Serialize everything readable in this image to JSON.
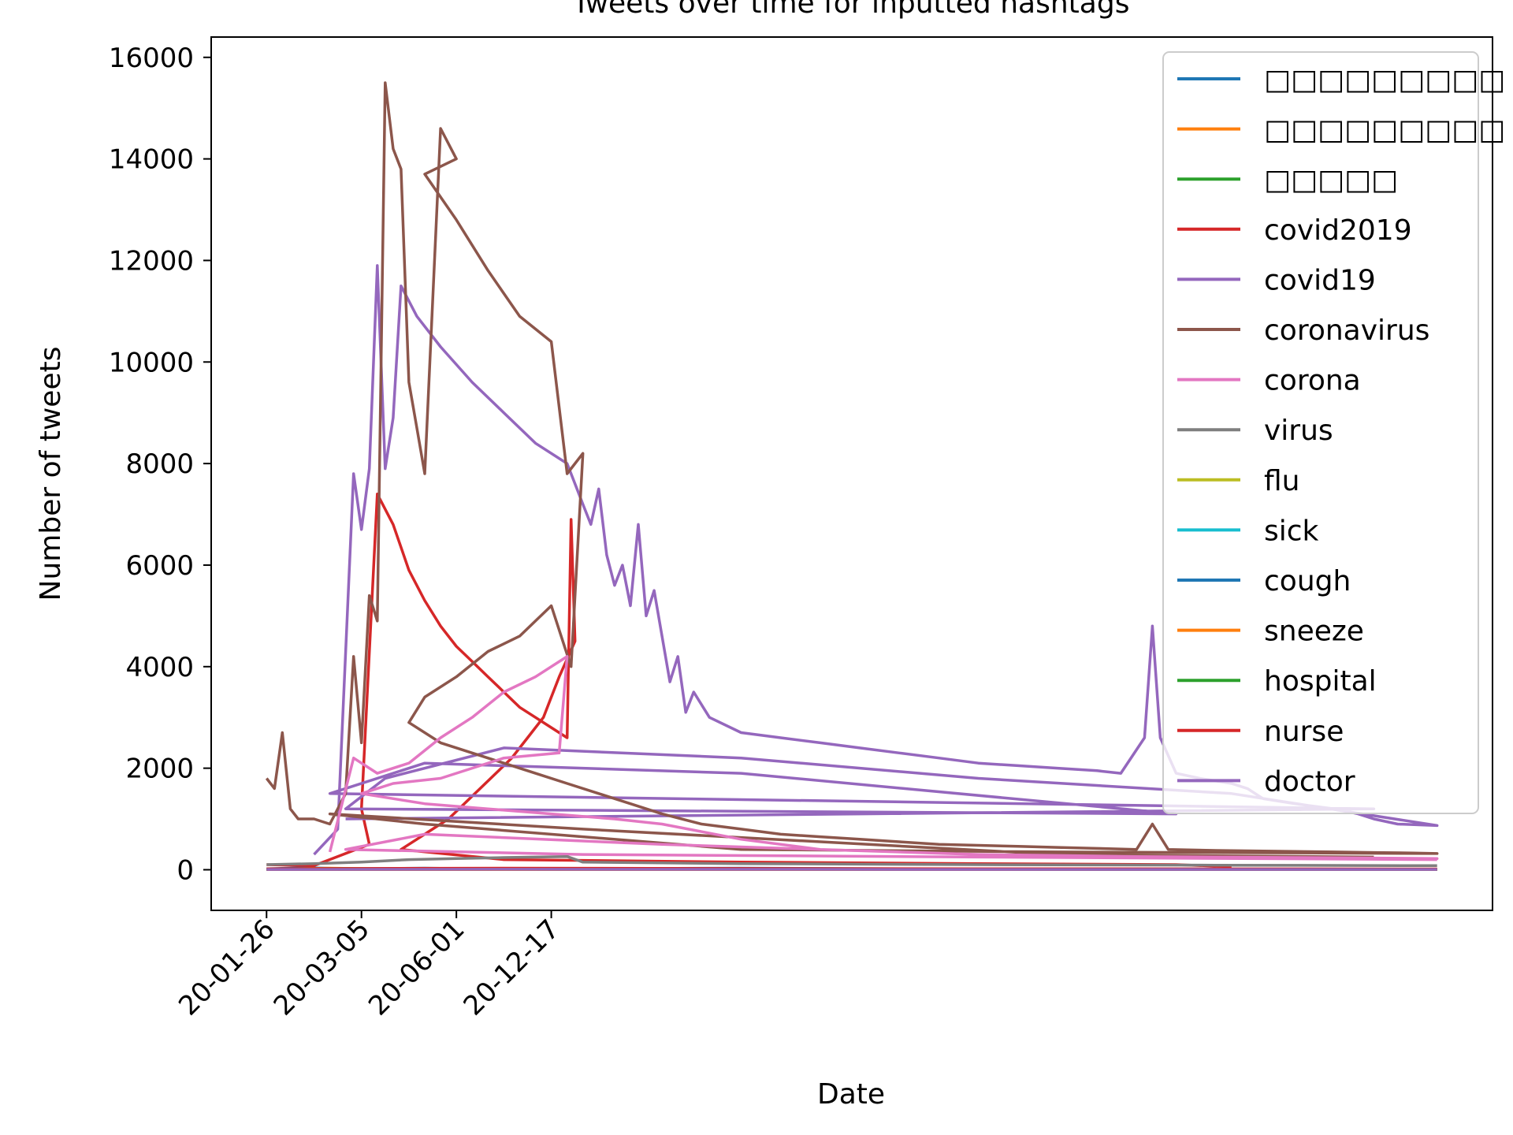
{
  "chart_data": {
    "type": "line",
    "title": "Tweets over time for inputted hashtags",
    "xlabel": "Date",
    "ylabel": "Number of tweets",
    "x_ticks": [
      "20-01-26",
      "20-03-05",
      "20-06-01",
      "20-12-17"
    ],
    "y_ticks": [
      0,
      2000,
      4000,
      6000,
      8000,
      10000,
      12000,
      14000,
      16000
    ],
    "ylim": [
      -800,
      16400
    ],
    "grid": false,
    "legend_position": "upper right",
    "series": [
      {
        "name": "□□□□□□□□□",
        "color": "#1f77b4",
        "points": [
          [
            0,
            20
          ],
          [
            5,
            40
          ],
          [
            10,
            20
          ],
          [
            20,
            30
          ],
          [
            30,
            10
          ],
          [
            40,
            20
          ],
          [
            60,
            30
          ],
          [
            80,
            20
          ],
          [
            120,
            15
          ]
        ]
      },
      {
        "name": "□□□□□□□□□",
        "color": "#ff7f0e",
        "points": [
          [
            0,
            10
          ],
          [
            8,
            30
          ],
          [
            15,
            15
          ],
          [
            25,
            20
          ],
          [
            40,
            10
          ],
          [
            70,
            20
          ],
          [
            120,
            10
          ]
        ]
      },
      {
        "name": "□□□□□",
        "color": "#2ca02c",
        "points": [
          [
            0,
            15
          ],
          [
            10,
            25
          ],
          [
            20,
            10
          ],
          [
            35,
            20
          ],
          [
            55,
            15
          ],
          [
            120,
            10
          ]
        ]
      },
      {
        "name": "covid2019",
        "color": "#d62728",
        "points": [
          [
            0,
            100
          ],
          [
            6,
            80
          ],
          [
            13,
            500
          ],
          [
            12,
            1200
          ],
          [
            14,
            7400
          ],
          [
            16,
            6800
          ],
          [
            18,
            5900
          ],
          [
            20,
            5300
          ],
          [
            22,
            4800
          ],
          [
            24,
            4400
          ],
          [
            26,
            4100
          ],
          [
            28,
            3800
          ],
          [
            30,
            3500
          ],
          [
            32,
            3200
          ],
          [
            34,
            3000
          ],
          [
            36,
            2800
          ],
          [
            38,
            2600
          ],
          [
            38.5,
            6900
          ],
          [
            39,
            4500
          ],
          [
            37,
            3800
          ],
          [
            35,
            3000
          ],
          [
            33,
            2600
          ],
          [
            31,
            2200
          ],
          [
            29,
            1900
          ],
          [
            27,
            1600
          ],
          [
            25,
            1300
          ],
          [
            23,
            1000
          ],
          [
            21,
            800
          ],
          [
            19,
            600
          ],
          [
            17,
            400
          ],
          [
            30,
            200
          ],
          [
            60,
            150
          ],
          [
            90,
            120
          ],
          [
            115,
            100
          ],
          [
            122,
            60
          ]
        ]
      },
      {
        "name": "covid19",
        "color": "#9467bd",
        "points": [
          [
            6,
            300
          ],
          [
            9,
            800
          ],
          [
            11,
            7800
          ],
          [
            12,
            6700
          ],
          [
            13,
            7900
          ],
          [
            14,
            11900
          ],
          [
            15,
            7900
          ],
          [
            16,
            8900
          ],
          [
            17,
            11500
          ],
          [
            19,
            10900
          ],
          [
            22,
            10300
          ],
          [
            26,
            9600
          ],
          [
            30,
            9000
          ],
          [
            34,
            8400
          ],
          [
            38,
            8000
          ],
          [
            39,
            7600
          ],
          [
            40,
            7200
          ],
          [
            41,
            6800
          ],
          [
            42,
            7500
          ],
          [
            43,
            6200
          ],
          [
            44,
            5600
          ],
          [
            45,
            6000
          ],
          [
            46,
            5200
          ],
          [
            47,
            6800
          ],
          [
            48,
            5000
          ],
          [
            49,
            5500
          ],
          [
            50,
            4600
          ],
          [
            51,
            3700
          ],
          [
            52,
            4200
          ],
          [
            53,
            3100
          ],
          [
            54,
            3500
          ],
          [
            56,
            3000
          ],
          [
            60,
            2700
          ],
          [
            65,
            2600
          ],
          [
            70,
            2500
          ],
          [
            75,
            2400
          ],
          [
            80,
            2300
          ],
          [
            85,
            2200
          ],
          [
            90,
            2100
          ],
          [
            95,
            2050
          ],
          [
            100,
            2000
          ],
          [
            105,
            1950
          ],
          [
            108,
            1900
          ],
          [
            111,
            2600
          ],
          [
            112,
            4800
          ],
          [
            113,
            2600
          ],
          [
            115,
            1900
          ],
          [
            118,
            1800
          ],
          [
            122,
            1700
          ],
          [
            124,
            1600
          ],
          [
            126,
            1400
          ],
          [
            130,
            1300
          ],
          [
            135,
            1200
          ],
          [
            138,
            1100
          ],
          [
            140,
            1000
          ],
          [
            143,
            900
          ],
          [
            148,
            870
          ],
          [
            122,
            1500
          ],
          [
            90,
            1800
          ],
          [
            60,
            2200
          ],
          [
            30,
            2400
          ],
          [
            15,
            1800
          ],
          [
            10,
            1200
          ],
          [
            115,
            1100
          ],
          [
            60,
            1900
          ],
          [
            20,
            2100
          ],
          [
            8,
            1500
          ],
          [
            140,
            1200
          ],
          [
            10,
            1000
          ]
        ]
      },
      {
        "name": "coronavirus",
        "color": "#8c564b",
        "points": [
          [
            0,
            1800
          ],
          [
            1,
            1600
          ],
          [
            2,
            2700
          ],
          [
            3,
            1200
          ],
          [
            4,
            1000
          ],
          [
            6,
            1000
          ],
          [
            8,
            900
          ],
          [
            10,
            1500
          ],
          [
            11,
            4200
          ],
          [
            12,
            2500
          ],
          [
            13,
            5400
          ],
          [
            14,
            4900
          ],
          [
            15,
            15500
          ],
          [
            16,
            14200
          ],
          [
            17,
            13800
          ],
          [
            18,
            9600
          ],
          [
            19,
            8700
          ],
          [
            20,
            7800
          ],
          [
            22,
            14600
          ],
          [
            24,
            14000
          ],
          [
            20,
            13700
          ],
          [
            24,
            12800
          ],
          [
            28,
            11800
          ],
          [
            32,
            10900
          ],
          [
            36,
            10400
          ],
          [
            38,
            7800
          ],
          [
            40,
            8200
          ],
          [
            38.5,
            4000
          ],
          [
            36,
            5200
          ],
          [
            32,
            4600
          ],
          [
            28,
            4300
          ],
          [
            24,
            3800
          ],
          [
            20,
            3400
          ],
          [
            18,
            2900
          ],
          [
            22,
            2500
          ],
          [
            26,
            2300
          ],
          [
            30,
            2100
          ],
          [
            34,
            1900
          ],
          [
            38,
            1700
          ],
          [
            42,
            1500
          ],
          [
            46,
            1300
          ],
          [
            50,
            1100
          ],
          [
            55,
            900
          ],
          [
            60,
            800
          ],
          [
            65,
            700
          ],
          [
            70,
            650
          ],
          [
            75,
            600
          ],
          [
            80,
            550
          ],
          [
            85,
            500
          ],
          [
            90,
            480
          ],
          [
            95,
            460
          ],
          [
            100,
            440
          ],
          [
            105,
            420
          ],
          [
            110,
            400
          ],
          [
            112,
            900
          ],
          [
            114,
            400
          ],
          [
            120,
            380
          ],
          [
            125,
            370
          ],
          [
            130,
            360
          ],
          [
            135,
            350
          ],
          [
            140,
            340
          ],
          [
            145,
            330
          ],
          [
            148,
            320
          ],
          [
            100,
            350
          ],
          [
            60,
            400
          ],
          [
            20,
            900
          ],
          [
            8,
            1100
          ],
          [
            40,
            800
          ],
          [
            100,
            300
          ],
          [
            140,
            250
          ]
        ]
      },
      {
        "name": "corona",
        "color": "#e377c2",
        "points": [
          [
            8,
            350
          ],
          [
            11,
            2200
          ],
          [
            14,
            1900
          ],
          [
            18,
            2100
          ],
          [
            22,
            2600
          ],
          [
            26,
            3000
          ],
          [
            30,
            3500
          ],
          [
            34,
            3800
          ],
          [
            38,
            4200
          ],
          [
            37,
            2300
          ],
          [
            30,
            2200
          ],
          [
            22,
            1800
          ],
          [
            16,
            1700
          ],
          [
            12,
            1500
          ],
          [
            20,
            1300
          ],
          [
            28,
            1200
          ],
          [
            36,
            1100
          ],
          [
            44,
            1000
          ],
          [
            50,
            900
          ],
          [
            60,
            600
          ],
          [
            70,
            400
          ],
          [
            80,
            350
          ],
          [
            90,
            300
          ],
          [
            100,
            280
          ],
          [
            110,
            260
          ],
          [
            120,
            250
          ],
          [
            130,
            240
          ],
          [
            140,
            230
          ],
          [
            148,
            220
          ],
          [
            100,
            250
          ],
          [
            50,
            500
          ],
          [
            20,
            700
          ],
          [
            10,
            400
          ],
          [
            40,
            300
          ],
          [
            90,
            250
          ],
          [
            148,
            200
          ]
        ]
      },
      {
        "name": "virus",
        "color": "#7f7f7f",
        "points": [
          [
            0,
            100
          ],
          [
            6,
            120
          ],
          [
            12,
            150
          ],
          [
            18,
            200
          ],
          [
            24,
            220
          ],
          [
            30,
            240
          ],
          [
            38,
            260
          ],
          [
            40,
            150
          ],
          [
            60,
            120
          ],
          [
            90,
            100
          ],
          [
            120,
            90
          ],
          [
            148,
            80
          ]
        ]
      },
      {
        "name": "flu",
        "color": "#bcbd22",
        "points": [
          [
            0,
            5
          ],
          [
            30,
            8
          ],
          [
            60,
            5
          ],
          [
            90,
            7
          ],
          [
            148,
            5
          ]
        ]
      },
      {
        "name": "sick",
        "color": "#17becf",
        "points": [
          [
            0,
            8
          ],
          [
            30,
            10
          ],
          [
            60,
            8
          ],
          [
            90,
            9
          ],
          [
            148,
            7
          ]
        ]
      },
      {
        "name": "cough",
        "color": "#1f77b4",
        "points": [
          [
            0,
            3
          ],
          [
            30,
            5
          ],
          [
            60,
            4
          ],
          [
            90,
            3
          ],
          [
            148,
            4
          ]
        ]
      },
      {
        "name": "sneeze",
        "color": "#ff7f0e",
        "points": [
          [
            0,
            2
          ],
          [
            30,
            3
          ],
          [
            60,
            2
          ],
          [
            90,
            2
          ],
          [
            148,
            2
          ]
        ]
      },
      {
        "name": "hospital",
        "color": "#2ca02c",
        "points": [
          [
            0,
            10
          ],
          [
            30,
            12
          ],
          [
            60,
            10
          ],
          [
            90,
            11
          ],
          [
            148,
            9
          ]
        ]
      },
      {
        "name": "nurse",
        "color": "#d62728",
        "points": [
          [
            0,
            20
          ],
          [
            30,
            30
          ],
          [
            60,
            25
          ],
          [
            90,
            20
          ],
          [
            148,
            15
          ]
        ]
      },
      {
        "name": "doctor",
        "color": "#9467bd",
        "points": [
          [
            0,
            6
          ],
          [
            30,
            8
          ],
          [
            60,
            7
          ],
          [
            90,
            6
          ],
          [
            148,
            5
          ]
        ]
      }
    ]
  }
}
